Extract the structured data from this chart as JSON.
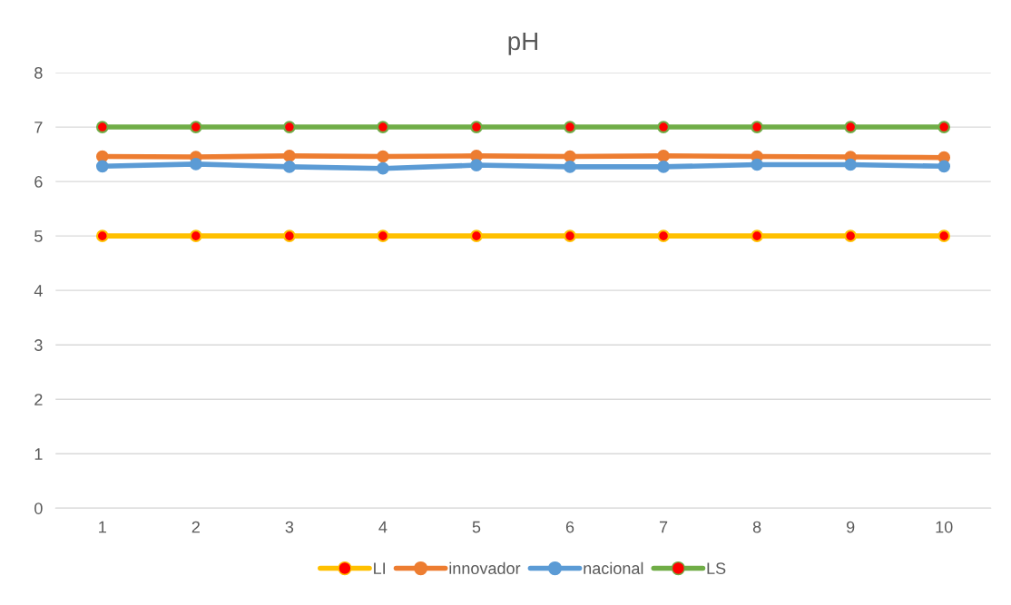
{
  "chart_data": {
    "type": "line",
    "title": "pH",
    "categories": [
      "1",
      "2",
      "3",
      "4",
      "5",
      "6",
      "7",
      "8",
      "9",
      "10"
    ],
    "series": [
      {
        "name": "LI",
        "color": "#ffc000",
        "colors": [
          "#ff0000",
          "#ff0000",
          "#ff0000",
          "#ff0000",
          "#ff0000",
          "#ff0000",
          "#ff0000",
          "#ff0000",
          "#ff0000",
          "#ff0000"
        ],
        "values": [
          5,
          5,
          5,
          5,
          5,
          5,
          5,
          5,
          5,
          5
        ]
      },
      {
        "name": "innovador",
        "color": "#ed7d31",
        "values": [
          6.46,
          6.45,
          6.47,
          6.46,
          6.47,
          6.46,
          6.47,
          6.46,
          6.45,
          6.44
        ]
      },
      {
        "name": "nacional",
        "color": "#5b9bd5",
        "values": [
          6.28,
          6.32,
          6.27,
          6.24,
          6.3,
          6.27,
          6.27,
          6.31,
          6.31,
          6.28
        ]
      },
      {
        "name": "LS",
        "color": "#70ad47",
        "colors": [
          "#ff0000",
          "#ff0000",
          "#ff0000",
          "#ff0000",
          "#ff0000",
          "#ff0000",
          "#ff0000",
          "#ff0000",
          "#ff0000",
          "#ff0000"
        ],
        "values": [
          7,
          7,
          7,
          7,
          7,
          7,
          7,
          7,
          7,
          7
        ]
      }
    ],
    "ylim": [
      0,
      8
    ],
    "yticks": [
      0,
      1,
      2,
      3,
      4,
      5,
      6,
      7,
      8
    ],
    "grid": "y",
    "legend": "bottom",
    "marker": "circle",
    "line_style": "solid"
  }
}
